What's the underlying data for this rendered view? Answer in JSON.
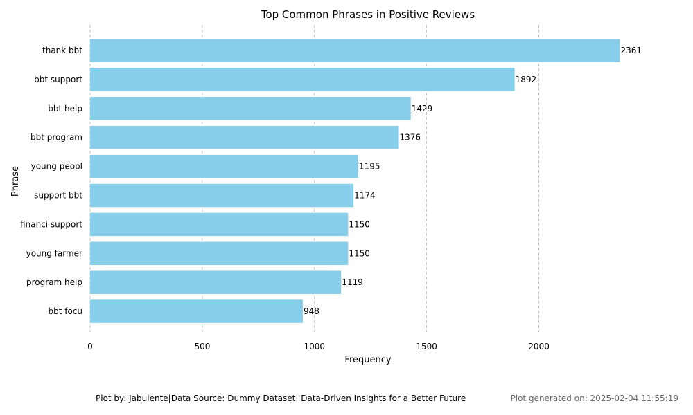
{
  "chart_data": {
    "type": "bar",
    "orientation": "horizontal",
    "title": "Top Common Phrases in Positive Reviews",
    "xlabel": "Frequency",
    "ylabel": "Phrase",
    "categories": [
      "thank bbt",
      "bbt support",
      "bbt help",
      "bbt program",
      "young peopl",
      "support bbt",
      "financi support",
      "young farmer",
      "program help",
      "bbt focu"
    ],
    "values": [
      2361,
      1892,
      1429,
      1376,
      1195,
      1174,
      1150,
      1150,
      1119,
      948
    ],
    "xlim": [
      0,
      2480
    ],
    "xticks": [
      0,
      500,
      1000,
      1500,
      2000
    ],
    "grid": "vertical dashed",
    "legend": "none",
    "bar_color": "#87CEEB",
    "grid_color": "#b0b0b0"
  },
  "footer": {
    "credit": "Plot by: Jabulente|Data Source: Dummy Dataset| Data-Driven Insights for a Better Future",
    "generated": "Plot generated on: 2025-02-04 11:55:19"
  }
}
